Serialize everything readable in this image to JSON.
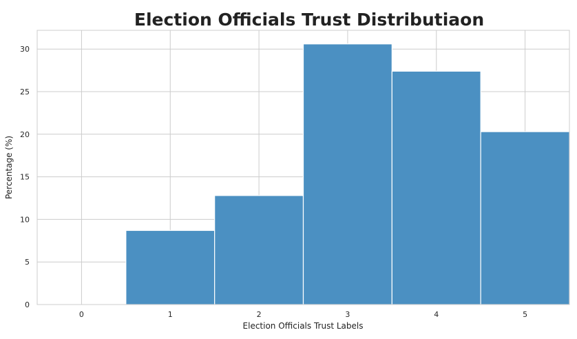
{
  "chart_data": {
    "type": "bar",
    "title": "Election Officials Trust Distributiaon",
    "xlabel": "Election Officials Trust Labels",
    "ylabel": "Percentage (%)",
    "x": [
      1,
      2,
      3,
      4,
      5
    ],
    "values": [
      8.7,
      12.8,
      30.6,
      27.4,
      20.3
    ],
    "xlim": [
      -0.5,
      5.5
    ],
    "ylim": [
      0,
      32.2
    ],
    "xticks": [
      "0",
      "1",
      "2",
      "3",
      "4",
      "5"
    ],
    "yticks": [
      "0",
      "5",
      "10",
      "15",
      "20",
      "25",
      "30"
    ],
    "grid": true,
    "bar_color": "#4b90c2",
    "grid_color": "#cccccc"
  }
}
